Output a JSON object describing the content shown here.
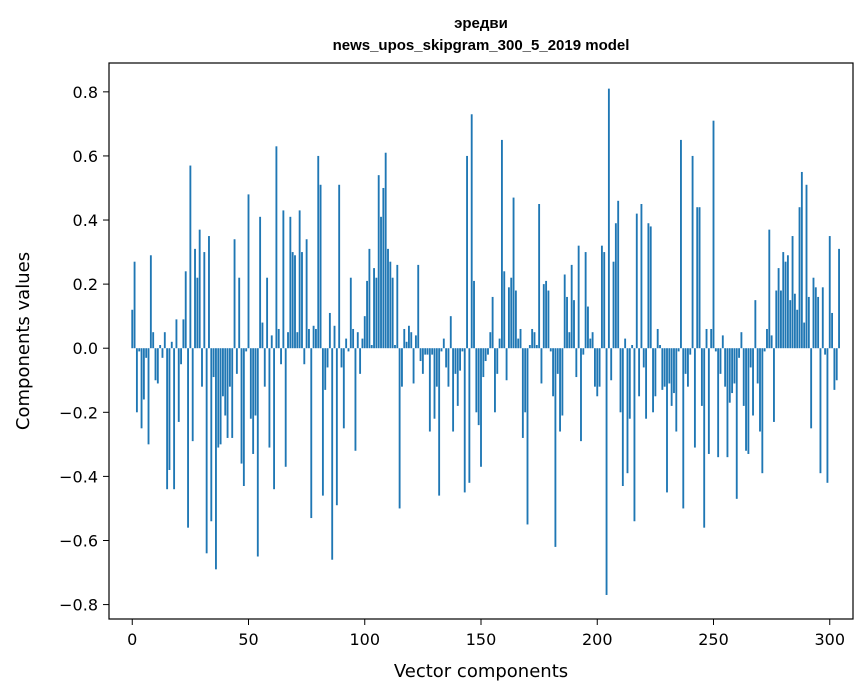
{
  "chart_data": {
    "type": "bar",
    "title": "эредви",
    "subtitle": "news_upos_skipgram_300_5_2019 model",
    "xlabel": "Vector components",
    "ylabel": "Components values",
    "xlim": [
      -10,
      310
    ],
    "ylim": [
      -0.845,
      0.89
    ],
    "xticks": [
      0,
      50,
      100,
      150,
      200,
      250,
      300
    ],
    "yticks": [
      -0.8,
      -0.6,
      -0.4,
      -0.2,
      0.0,
      0.2,
      0.4,
      0.6,
      0.8
    ],
    "ytick_labels": [
      "−0.8",
      "−0.6",
      "−0.4",
      "−0.2",
      "0.0",
      "0.2",
      "0.4",
      "0.6",
      "0.8"
    ],
    "bar_color": "#1f77b4",
    "grid": false,
    "values": [
      0.12,
      0.27,
      -0.2,
      -0.01,
      -0.25,
      -0.16,
      -0.03,
      -0.3,
      0.29,
      0.05,
      -0.1,
      -0.11,
      0.01,
      -0.03,
      0.05,
      -0.44,
      -0.38,
      0.02,
      -0.44,
      0.09,
      -0.23,
      -0.05,
      0.09,
      0.24,
      -0.56,
      0.57,
      -0.29,
      0.31,
      0.22,
      0.37,
      -0.12,
      0.3,
      -0.64,
      0.35,
      -0.54,
      -0.09,
      -0.69,
      -0.31,
      -0.3,
      -0.15,
      -0.21,
      -0.28,
      -0.12,
      -0.28,
      0.34,
      -0.08,
      0.22,
      -0.36,
      -0.43,
      -0.01,
      0.48,
      -0.22,
      -0.33,
      -0.21,
      -0.65,
      0.41,
      0.08,
      -0.12,
      0.22,
      -0.31,
      0.04,
      -0.44,
      0.63,
      0.06,
      -0.05,
      0.43,
      -0.37,
      0.05,
      0.41,
      0.3,
      0.29,
      0.05,
      0.43,
      0.3,
      -0.05,
      0.34,
      0.06,
      -0.53,
      0.07,
      0.06,
      0.6,
      0.51,
      -0.46,
      -0.13,
      -0.06,
      0.11,
      -0.66,
      0.07,
      -0.49,
      0.51,
      -0.06,
      -0.25,
      0.03,
      -0.01,
      0.22,
      0.06,
      -0.32,
      0.05,
      -0.08,
      0.03,
      0.1,
      0.21,
      0.31,
      0.01,
      0.25,
      0.22,
      0.54,
      0.41,
      0.5,
      0.61,
      0.31,
      0.27,
      0.22,
      0.01,
      0.26,
      -0.5,
      -0.12,
      0.06,
      0.02,
      0.07,
      0.05,
      -0.11,
      0.04,
      0.26,
      -0.04,
      -0.08,
      -0.02,
      -0.02,
      -0.26,
      -0.02,
      -0.22,
      -0.12,
      -0.46,
      -0.01,
      0.03,
      -0.06,
      -0.12,
      0.1,
      -0.26,
      -0.08,
      -0.18,
      -0.07,
      -0.01,
      -0.45,
      0.6,
      -0.42,
      0.73,
      0.21,
      -0.2,
      -0.24,
      -0.37,
      -0.09,
      -0.04,
      -0.02,
      0.05,
      0.16,
      -0.2,
      -0.08,
      0.03,
      0.65,
      0.24,
      -0.1,
      0.19,
      0.22,
      0.47,
      0.18,
      0.03,
      0.06,
      -0.28,
      -0.2,
      -0.55,
      0.01,
      0.06,
      0.05,
      0.01,
      0.45,
      -0.11,
      0.2,
      0.21,
      0.18,
      -0.01,
      -0.15,
      -0.62,
      -0.08,
      -0.26,
      -0.21,
      0.23,
      0.16,
      0.05,
      0.26,
      0.15,
      -0.09,
      0.32,
      -0.29,
      -0.02,
      0.3,
      0.13,
      0.03,
      0.05,
      -0.12,
      -0.15,
      -0.12,
      0.32,
      0.3,
      -0.77,
      0.81,
      -0.1,
      0.27,
      0.39,
      0.46,
      -0.2,
      -0.43,
      0.03,
      -0.39,
      -0.22,
      0.01,
      -0.54,
      0.42,
      -0.15,
      0.45,
      -0.06,
      -0.22,
      0.39,
      0.38,
      -0.2,
      -0.15,
      0.06,
      0.01,
      -0.13,
      -0.12,
      -0.45,
      -0.11,
      -0.18,
      -0.14,
      -0.26,
      -0.01,
      0.65,
      -0.5,
      -0.08,
      -0.12,
      -0.02,
      0.6,
      -0.31,
      0.44,
      0.44,
      -0.18,
      -0.56,
      0.06,
      -0.33,
      0.06,
      0.71,
      -0.01,
      -0.34,
      -0.08,
      0.04,
      -0.12,
      -0.34,
      -0.17,
      -0.14,
      -0.11,
      -0.47,
      -0.03,
      0.05,
      -0.18,
      -0.32,
      -0.33,
      -0.06,
      -0.21,
      0.15,
      -0.11,
      -0.26,
      -0.39,
      -0.01,
      0.06,
      0.37,
      0.04,
      -0.23,
      0.18,
      0.25,
      0.18,
      0.3,
      0.27,
      0.29,
      0.15,
      0.35,
      0.17,
      0.12,
      0.44,
      0.55,
      0.08,
      0.51,
      0.16,
      -0.25,
      0.22,
      0.19,
      0.16,
      -0.39,
      0.19,
      -0.02,
      -0.42,
      0.35,
      0.11,
      -0.13,
      -0.1,
      0.31
    ]
  }
}
